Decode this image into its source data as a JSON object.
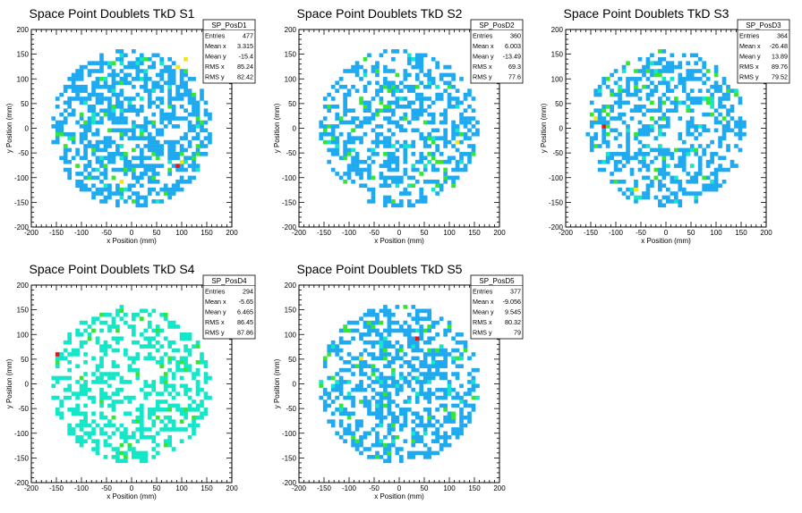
{
  "palette": {
    "empty": "#ffffff",
    "level1": "#1eaaf0",
    "level2": "#14e6c8",
    "level3": "#32e632",
    "level4": "#f0e614",
    "level5": "#e61414"
  },
  "chart_data": [
    {
      "type": "heatmap",
      "title": "Space Point Doublets TkD S1",
      "xlabel": "x Position (mm)",
      "ylabel": "y Position (mm)",
      "xlim": [
        -200,
        200
      ],
      "ylim": [
        -200,
        200
      ],
      "xticks": [
        "-200",
        "-150",
        "-100",
        "-50",
        "0",
        "50",
        "100",
        "150",
        "200"
      ],
      "yticks": [
        "-200",
        "-150",
        "-100",
        "-50",
        "0",
        "50",
        "100",
        "150",
        "200"
      ],
      "grid": false,
      "disk_radius": 160,
      "fill_fraction": 0.55,
      "seed": 11,
      "base_level": 1,
      "hot_cells": [
        [
          92,
          -75,
          5
        ],
        [
          102,
          -70,
          4
        ],
        [
          -20,
          -110,
          4
        ],
        [
          90,
          120,
          4
        ],
        [
          -10,
          -55,
          3
        ],
        [
          -60,
          100,
          3
        ],
        [
          -118,
          -20,
          3
        ],
        [
          110,
          140,
          4
        ]
      ],
      "stats": {
        "name": "SP_PosD1",
        "rows": [
          {
            "label": "Entries",
            "value": "477"
          },
          {
            "label": "Mean x",
            "value": "3.315"
          },
          {
            "label": "Mean y",
            "value": "-15.4"
          },
          {
            "label": "RMS x",
            "value": "85.24"
          },
          {
            "label": "RMS y",
            "value": "82.42"
          }
        ]
      }
    },
    {
      "type": "heatmap",
      "title": "Space Point Doublets TkD S2",
      "xlabel": "x Position (mm)",
      "ylabel": "y Position (mm)",
      "xlim": [
        -200,
        200
      ],
      "ylim": [
        -200,
        200
      ],
      "xticks": [
        "-200",
        "-150",
        "-100",
        "-50",
        "0",
        "50",
        "100",
        "150",
        "200"
      ],
      "yticks": [
        "-200",
        "-150",
        "-100",
        "-50",
        "0",
        "50",
        "100",
        "150",
        "200"
      ],
      "grid": false,
      "disk_radius": 160,
      "fill_fraction": 0.45,
      "seed": 23,
      "base_level": 1,
      "hot_cells": [
        [
          -75,
          55,
          3
        ],
        [
          -25,
          85,
          3
        ],
        [
          35,
          85,
          3
        ],
        [
          55,
          15,
          3
        ],
        [
          118,
          -30,
          4
        ],
        [
          -115,
          20,
          3
        ],
        [
          75,
          -65,
          3
        ],
        [
          -45,
          115,
          3
        ]
      ],
      "stats": {
        "name": "SP_PosD2",
        "rows": [
          {
            "label": "Entries",
            "value": "360"
          },
          {
            "label": "Mean x",
            "value": "6.003"
          },
          {
            "label": "Mean y",
            "value": "-13.49"
          },
          {
            "label": "RMS x",
            "value": "69.3"
          },
          {
            "label": "RMS y",
            "value": "77.6"
          }
        ]
      }
    },
    {
      "type": "heatmap",
      "title": "Space Point Doublets TkD S3",
      "xlabel": "x Position (mm)",
      "ylabel": "y Position (mm)",
      "xlim": [
        -200,
        200
      ],
      "ylim": [
        -200,
        200
      ],
      "xticks": [
        "-200",
        "-150",
        "-100",
        "-50",
        "0",
        "50",
        "100",
        "150",
        "200"
      ],
      "yticks": [
        "-200",
        "-150",
        "-100",
        "-50",
        "0",
        "50",
        "100",
        "150",
        "200"
      ],
      "grid": false,
      "disk_radius": 160,
      "fill_fraction": 0.42,
      "seed": 37,
      "base_level": 1,
      "hot_cells": [
        [
          -125,
          0,
          5
        ],
        [
          -140,
          20,
          4
        ],
        [
          -118,
          40,
          3
        ],
        [
          -105,
          70,
          3
        ],
        [
          -80,
          135,
          3
        ],
        [
          -150,
          25,
          3
        ],
        [
          -60,
          -125,
          4
        ],
        [
          -140,
          -40,
          3
        ],
        [
          85,
          60,
          3
        ]
      ],
      "stats": {
        "name": "SP_PosD3",
        "rows": [
          {
            "label": "Entries",
            "value": "364"
          },
          {
            "label": "Mean x",
            "value": "-26.48"
          },
          {
            "label": "Mean y",
            "value": "13.89"
          },
          {
            "label": "RMS x",
            "value": "89.76"
          },
          {
            "label": "RMS y",
            "value": "79.52"
          }
        ]
      }
    },
    {
      "type": "heatmap",
      "title": "Space Point Doublets TkD S4",
      "xlabel": "x Position (mm)",
      "ylabel": "y Position (mm)",
      "xlim": [
        -200,
        200
      ],
      "ylim": [
        -200,
        200
      ],
      "xticks": [
        "-200",
        "-150",
        "-100",
        "-50",
        "0",
        "50",
        "100",
        "150",
        "200"
      ],
      "yticks": [
        "-200",
        "-150",
        "-100",
        "-50",
        "0",
        "50",
        "100",
        "150",
        "200"
      ],
      "grid": false,
      "disk_radius": 160,
      "fill_fraction": 0.38,
      "seed": 53,
      "base_level": 2,
      "hot_cells": [
        [
          -148,
          60,
          5
        ],
        [
          -150,
          40,
          3
        ],
        [
          -60,
          140,
          3
        ],
        [
          -80,
          110,
          3
        ],
        [
          -100,
          10,
          3
        ],
        [
          -40,
          -70,
          3
        ],
        [
          -10,
          -145,
          3
        ],
        [
          100,
          -80,
          3
        ],
        [
          130,
          40,
          3
        ],
        [
          -60,
          -40,
          3
        ]
      ],
      "stats": {
        "name": "SP_PosD4",
        "rows": [
          {
            "label": "Entries",
            "value": "294"
          },
          {
            "label": "Mean x",
            "value": "-5.65"
          },
          {
            "label": "Mean y",
            "value": "6.465"
          },
          {
            "label": "RMS x",
            "value": "86.45"
          },
          {
            "label": "RMS y",
            "value": "87.86"
          }
        ]
      }
    },
    {
      "type": "heatmap",
      "title": "Space Point Doublets TkD S5",
      "xlabel": "x Position (mm)",
      "ylabel": "y Position (mm)",
      "xlim": [
        -200,
        200
      ],
      "ylim": [
        -200,
        200
      ],
      "xticks": [
        "-200",
        "-150",
        "-100",
        "-50",
        "0",
        "50",
        "100",
        "150",
        "200"
      ],
      "yticks": [
        "-200",
        "-150",
        "-100",
        "-50",
        "0",
        "50",
        "100",
        "150",
        "200"
      ],
      "grid": false,
      "disk_radius": 160,
      "fill_fraction": 0.5,
      "seed": 71,
      "base_level": 1,
      "hot_cells": [
        [
          35,
          95,
          5
        ],
        [
          -75,
          55,
          4
        ],
        [
          -25,
          65,
          3
        ],
        [
          75,
          65,
          3
        ],
        [
          105,
          -70,
          3
        ],
        [
          -140,
          60,
          3
        ],
        [
          -85,
          -120,
          3
        ],
        [
          25,
          -120,
          3
        ],
        [
          60,
          -65,
          3
        ],
        [
          -55,
          20,
          3
        ]
      ],
      "stats": {
        "name": "SP_PosD5",
        "rows": [
          {
            "label": "Entries",
            "value": "377"
          },
          {
            "label": "Mean x",
            "value": "-9.056"
          },
          {
            "label": "Mean y",
            "value": "9.545"
          },
          {
            "label": "RMS x",
            "value": "80.32"
          },
          {
            "label": "RMS y",
            "value": "79"
          }
        ]
      }
    }
  ]
}
